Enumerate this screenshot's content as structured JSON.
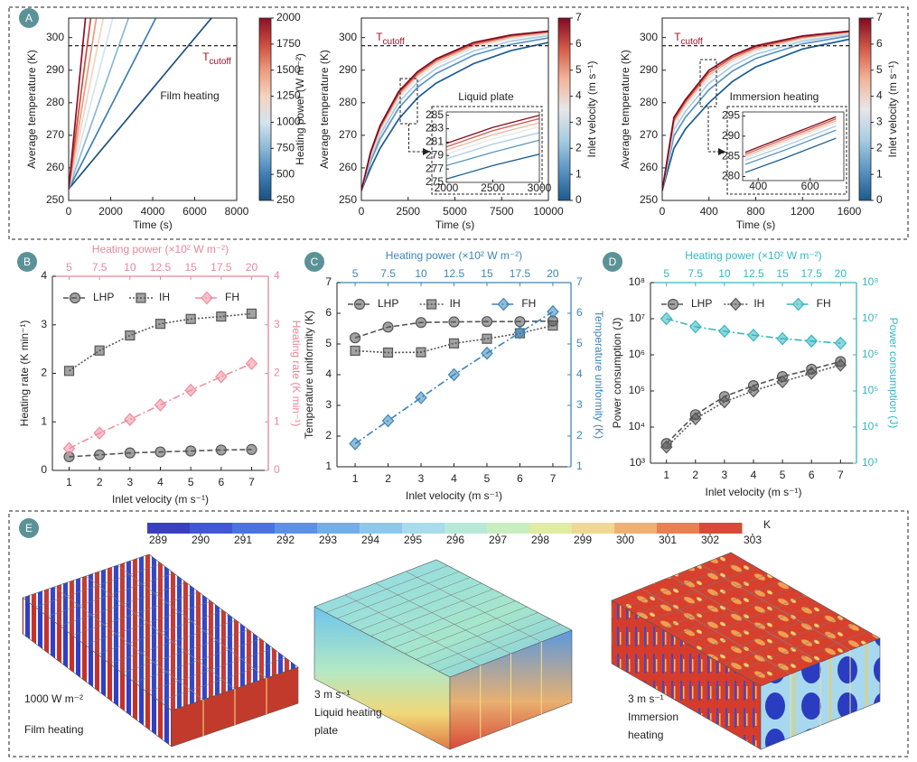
{
  "panel_labels": [
    "A",
    "B",
    "C",
    "D",
    "E"
  ],
  "chart_data": [
    {
      "type": "line",
      "title": "Film heating",
      "xlabel": "Time (s)",
      "ylabel": "Average temperature (K)",
      "xlim": [
        0,
        8000
      ],
      "xticks": [
        0,
        2000,
        4000,
        6000,
        8000
      ],
      "ylim": [
        250,
        306
      ],
      "yticks": [
        250,
        260,
        270,
        280,
        290,
        300
      ],
      "cutoff": 297.5,
      "cutoff_label": {
        "main": "T",
        "sub": "cutoff"
      },
      "series": [
        {
          "color": "#1b4f80",
          "x": [
            0,
            6800
          ],
          "values": [
            253.5,
            306
          ]
        },
        {
          "color": "#3f7fb5",
          "x": [
            0,
            4150
          ],
          "values": [
            253.5,
            306
          ]
        },
        {
          "color": "#8cb8d8",
          "x": [
            0,
            2850
          ],
          "values": [
            253.5,
            306
          ]
        },
        {
          "color": "#d4e4ee",
          "x": [
            0,
            2100
          ],
          "values": [
            253.5,
            306
          ]
        },
        {
          "color": "#f6d3c0",
          "x": [
            0,
            1650
          ],
          "values": [
            253.5,
            306
          ]
        },
        {
          "color": "#ec9b7d",
          "x": [
            0,
            1320
          ],
          "values": [
            253.5,
            306
          ]
        },
        {
          "color": "#cc4c3e",
          "x": [
            0,
            1050
          ],
          "values": [
            253.5,
            306
          ]
        },
        {
          "color": "#8b1027",
          "x": [
            0,
            800
          ],
          "values": [
            253.5,
            306
          ]
        }
      ],
      "colorbar": {
        "label": "Heating power (W m⁻²)",
        "lim": [
          250,
          2000
        ],
        "ticks": [
          250,
          500,
          750,
          1000,
          1250,
          1500,
          1750,
          2000
        ]
      }
    },
    {
      "type": "line",
      "title": "Liquid plate",
      "xlabel": "Time (s)",
      "ylabel": "Average temperature (K)",
      "xlim": [
        0,
        10000
      ],
      "xticks": [
        0,
        2500,
        5000,
        7500,
        10000
      ],
      "ylim": [
        250,
        306
      ],
      "yticks": [
        250,
        260,
        270,
        280,
        290,
        300
      ],
      "cutoff": 297.5,
      "cutoff_label": {
        "main": "T",
        "sub": "cutoff"
      },
      "x": [
        0,
        500,
        1000,
        2000,
        3000,
        4000,
        6000,
        8000,
        10000
      ],
      "series": [
        {
          "color": "#1b5b8f",
          "values": [
            253,
            260,
            266,
            275,
            281.5,
            286,
            292,
            296,
            298.5
          ]
        },
        {
          "color": "#5b94c2",
          "values": [
            253,
            262,
            268.8,
            278.4,
            284.7,
            289,
            294.6,
            297.9,
            299.9
          ]
        },
        {
          "color": "#a9cde2",
          "values": [
            253,
            263,
            270.2,
            280.1,
            286.3,
            290.5,
            295.9,
            298.9,
            300.6
          ]
        },
        {
          "color": "#e8e6e8",
          "values": [
            253,
            263.8,
            271.3,
            281.4,
            287.5,
            291.6,
            296.9,
            299.6,
            301.1
          ]
        },
        {
          "color": "#f2b49a",
          "values": [
            253,
            264.3,
            272,
            282.2,
            288.3,
            292.4,
            297.5,
            300.1,
            301.5
          ]
        },
        {
          "color": "#d45a48",
          "values": [
            253,
            264.7,
            272.5,
            282.9,
            288.9,
            293,
            298,
            300.5,
            301.8
          ]
        },
        {
          "color": "#7f0a22",
          "values": [
            253,
            265,
            273,
            283.5,
            289.5,
            293.5,
            298.5,
            300.8,
            302
          ]
        }
      ],
      "colorbar": {
        "label": "Inlet velocity (m s⁻¹)",
        "lim": [
          0,
          7
        ],
        "ticks": [
          0,
          1,
          2,
          3,
          4,
          5,
          6,
          7
        ]
      },
      "inset": {
        "xlim": [
          2000,
          3000
        ],
        "xticks": [
          2000,
          2500,
          3000
        ],
        "ylim": [
          275,
          285.5
        ],
        "yticks": [
          275,
          277,
          279,
          281,
          283,
          285
        ],
        "x": [
          2000,
          2500,
          3000
        ],
        "series": [
          {
            "values": [
              275.5,
              277.5,
              279.2
            ]
          },
          {
            "values": [
              277.5,
              279.5,
              281.3
            ]
          },
          {
            "values": [
              278.5,
              280.7,
              282.4
            ]
          },
          {
            "values": [
              279.2,
              281.5,
              283.3
            ]
          },
          {
            "values": [
              279.8,
              282.1,
              283.9
            ]
          },
          {
            "values": [
              280.3,
              282.7,
              284.5
            ]
          },
          {
            "values": [
              280.8,
              283.2,
              285
            ]
          }
        ]
      }
    },
    {
      "type": "line",
      "title": "Immersion heating",
      "xlabel": "Time (s)",
      "ylabel": "Average temperature (K)",
      "xlim": [
        0,
        1600
      ],
      "xticks": [
        0,
        400,
        800,
        1200,
        1600
      ],
      "ylim": [
        250,
        306
      ],
      "yticks": [
        250,
        260,
        270,
        280,
        290,
        300
      ],
      "cutoff": 297.5,
      "cutoff_label": {
        "main": "T",
        "sub": "cutoff"
      },
      "x": [
        0,
        100,
        200,
        400,
        600,
        800,
        1200,
        1600
      ],
      "series": [
        {
          "color": "#1b5b8f",
          "values": [
            253,
            266,
            272,
            280,
            286.5,
            291,
            296.5,
            299.5
          ]
        },
        {
          "color": "#5b94c2",
          "values": [
            253,
            269.8,
            275.6,
            284,
            289.7,
            293.6,
            298.1,
            300.5
          ]
        },
        {
          "color": "#a9cde2",
          "values": [
            253,
            271.7,
            277.4,
            286,
            291.3,
            294.9,
            298.9,
            301
          ]
        },
        {
          "color": "#e8e6e8",
          "values": [
            253,
            273.1,
            278.8,
            287.5,
            292.5,
            295.9,
            299.5,
            301.4
          ]
        },
        {
          "color": "#f2b49a",
          "values": [
            253,
            274.1,
            279.7,
            288.5,
            293.3,
            296.5,
            299.9,
            301.6
          ]
        },
        {
          "color": "#d45a48",
          "values": [
            253,
            274.8,
            280.4,
            289.3,
            293.9,
            297,
            300.2,
            301.8
          ]
        },
        {
          "color": "#7f0a22",
          "values": [
            253,
            275.5,
            281,
            290,
            294.5,
            297.5,
            300.5,
            302
          ]
        }
      ],
      "colorbar": {
        "label": "Inlet velocity (m s⁻¹)",
        "lim": [
          0,
          7
        ],
        "ticks": [
          0,
          1,
          2,
          3,
          4,
          5,
          6,
          7
        ]
      },
      "inset": {
        "xlim": [
          340,
          730
        ],
        "xticks": [
          400,
          600
        ],
        "ylim": [
          279,
          296
        ],
        "yticks": [
          280,
          285,
          290,
          295
        ],
        "x": [
          350,
          500,
          700
        ],
        "series": [
          {
            "values": [
              281,
              284.5,
              289.5
            ]
          },
          {
            "values": [
              283,
              286.5,
              291.5
            ]
          },
          {
            "values": [
              284,
              287.5,
              292.5
            ]
          },
          {
            "values": [
              284.5,
              288.3,
              293.3
            ]
          },
          {
            "values": [
              285,
              288.8,
              293.8
            ]
          },
          {
            "values": [
              285.5,
              289.3,
              294.3
            ]
          },
          {
            "values": [
              286,
              289.8,
              294.8
            ]
          }
        ]
      }
    },
    {
      "type": "dual_line",
      "xlabel": "Inlet velocity (m s⁻¹)",
      "x": [
        1,
        2,
        3,
        4,
        5,
        6,
        7
      ],
      "xlim": [
        0.45,
        7.55
      ],
      "xticks": [
        1,
        2,
        3,
        4,
        5,
        6,
        7
      ],
      "x2label": "Heating power (×10² W m⁻²)",
      "x2lim": [
        3.625,
        21.375
      ],
      "x2ticks": [
        5,
        7.5,
        10,
        12.5,
        15,
        17.5,
        20
      ],
      "ylabel": "Heating rate (K min⁻¹)",
      "ylim": [
        0,
        4
      ],
      "yticks": [
        0,
        1,
        2,
        3,
        4
      ],
      "y2label": "Heating rate (K min⁻¹)",
      "y2lim": [
        0,
        4
      ],
      "y2ticks": [
        0,
        1,
        2,
        3,
        4
      ],
      "axis2_color": "#e8879a",
      "log": false,
      "series": [
        {
          "name": "LHP",
          "color": "#555555",
          "marker": "circle",
          "dash": "6 3",
          "values": [
            0.28,
            0.32,
            0.36,
            0.38,
            0.4,
            0.42,
            0.43
          ]
        },
        {
          "name": "IH",
          "color": "#555555",
          "marker": "square",
          "dash": "2 2",
          "values": [
            2.05,
            2.47,
            2.78,
            3.02,
            3.12,
            3.17,
            3.23
          ]
        },
        {
          "name": "FH",
          "color": "#ee8fa0",
          "marker": "diamond",
          "dash": "8 3 2 3",
          "axis": "y2",
          "values": [
            0.45,
            0.77,
            1.05,
            1.35,
            1.65,
            1.93,
            2.2
          ]
        }
      ]
    },
    {
      "type": "dual_line",
      "xlabel": "Inlet velocity (m s⁻¹)",
      "x": [
        1,
        2,
        3,
        4,
        5,
        6,
        7
      ],
      "xlim": [
        0.45,
        7.55
      ],
      "xticks": [
        1,
        2,
        3,
        4,
        5,
        6,
        7
      ],
      "x2label": "Heating power (×10² W m⁻²)",
      "x2lim": [
        3.625,
        21.375
      ],
      "x2ticks": [
        5,
        7.5,
        10,
        12.5,
        15,
        17.5,
        20
      ],
      "ylabel": "Temperature uniformity (K)",
      "ylim": [
        1,
        7
      ],
      "yticks": [
        1,
        2,
        3,
        4,
        5,
        6,
        7
      ],
      "y2label": "Temperature uniformity (K)",
      "y2lim": [
        1,
        7
      ],
      "y2ticks": [
        1,
        2,
        3,
        4,
        5,
        6,
        7
      ],
      "axis2_color": "#3d86b8",
      "log": false,
      "series": [
        {
          "name": "LHP",
          "color": "#555555",
          "marker": "circle",
          "dash": "6 3",
          "values": [
            5.2,
            5.55,
            5.7,
            5.72,
            5.73,
            5.73,
            5.75
          ]
        },
        {
          "name": "IH",
          "color": "#555555",
          "marker": "square",
          "dash": "2 2",
          "values": [
            4.78,
            4.72,
            4.73,
            5.02,
            5.17,
            5.35,
            5.6
          ]
        },
        {
          "name": "FH",
          "color": "#3d86b8",
          "marker": "diamond",
          "dash": "8 3 2 3",
          "axis": "y2",
          "values": [
            1.75,
            2.5,
            3.25,
            4.0,
            4.7,
            5.37,
            6.05
          ]
        }
      ]
    },
    {
      "type": "dual_line",
      "xlabel": "Inlet velocity (m s⁻¹)",
      "x": [
        1,
        2,
        3,
        4,
        5,
        6,
        7
      ],
      "xlim": [
        0.45,
        7.55
      ],
      "xticks": [
        1,
        2,
        3,
        4,
        5,
        6,
        7
      ],
      "x2label": "Heating power (×10² W m⁻²)",
      "x2lim": [
        3.625,
        21.375
      ],
      "x2ticks": [
        5,
        7.5,
        10,
        12.5,
        15,
        17.5,
        20
      ],
      "ylabel": "Power consumption (J)",
      "ylim": [
        1000,
        100000000
      ],
      "yticks": [
        {
          "value": 1000,
          "label": "10³"
        },
        {
          "value": 10000,
          "label": "10⁴"
        },
        {
          "value": 100000,
          "label": "10⁵"
        },
        {
          "value": 1000000,
          "label": "10⁶"
        },
        {
          "value": 10000000,
          "label": "10⁷"
        },
        {
          "value": 100000000,
          "label": "10⁸"
        }
      ],
      "y2label": "Power consumption (J)",
      "y2lim": [
        1000,
        100000000
      ],
      "y2ticks": [
        {
          "value": 1000,
          "label": "10³"
        },
        {
          "value": 10000,
          "label": "10⁴"
        },
        {
          "value": 100000,
          "label": "10⁵"
        },
        {
          "value": 1000000,
          "label": "10⁶"
        },
        {
          "value": 10000000,
          "label": "10⁷"
        },
        {
          "value": 100000000,
          "label": "10⁸"
        }
      ],
      "axis2_color": "#35b7bf",
      "log": true,
      "series": [
        {
          "name": "LHP",
          "color": "#555555",
          "marker": "circle",
          "dash": "6 3",
          "values": [
            3500,
            22000,
            70000,
            140000,
            250000,
            400000,
            650000
          ]
        },
        {
          "name": "IH",
          "color": "#555555",
          "marker": "diamond",
          "dash": "2 2",
          "values": [
            2800,
            17000,
            50000,
            100000,
            180000,
            310000,
            520000
          ]
        },
        {
          "name": "FH",
          "color": "#35b7bf",
          "marker": "diamond",
          "dash": "8 3 2 3",
          "axis": "y2",
          "values": [
            10000000,
            6000000,
            4500000,
            3500000,
            2800000,
            2400000,
            2100000
          ]
        }
      ]
    },
    {
      "type": "colorbar",
      "unit": "K",
      "lim": [
        289,
        303
      ],
      "ticks": [
        289,
        290,
        291,
        292,
        293,
        294,
        295,
        296,
        297,
        298,
        299,
        300,
        301,
        302,
        303
      ],
      "colors": [
        "#3a3fbf",
        "#4058d6",
        "#4a74e0",
        "#5b92e6",
        "#72aeea",
        "#8cc8ee",
        "#a6dcec",
        "#b8e8d8",
        "#c8eec0",
        "#e0eca0",
        "#f0d890",
        "#f0b070",
        "#e88050",
        "#d84a38"
      ]
    }
  ],
  "panel_e": {
    "captions": [
      [
        "1000 W m⁻²",
        "Film heating"
      ],
      [
        "3 m s⁻¹",
        "Liquid heating",
        "plate"
      ],
      [
        "3 m s⁻¹",
        "Immersion",
        "heating"
      ]
    ]
  }
}
